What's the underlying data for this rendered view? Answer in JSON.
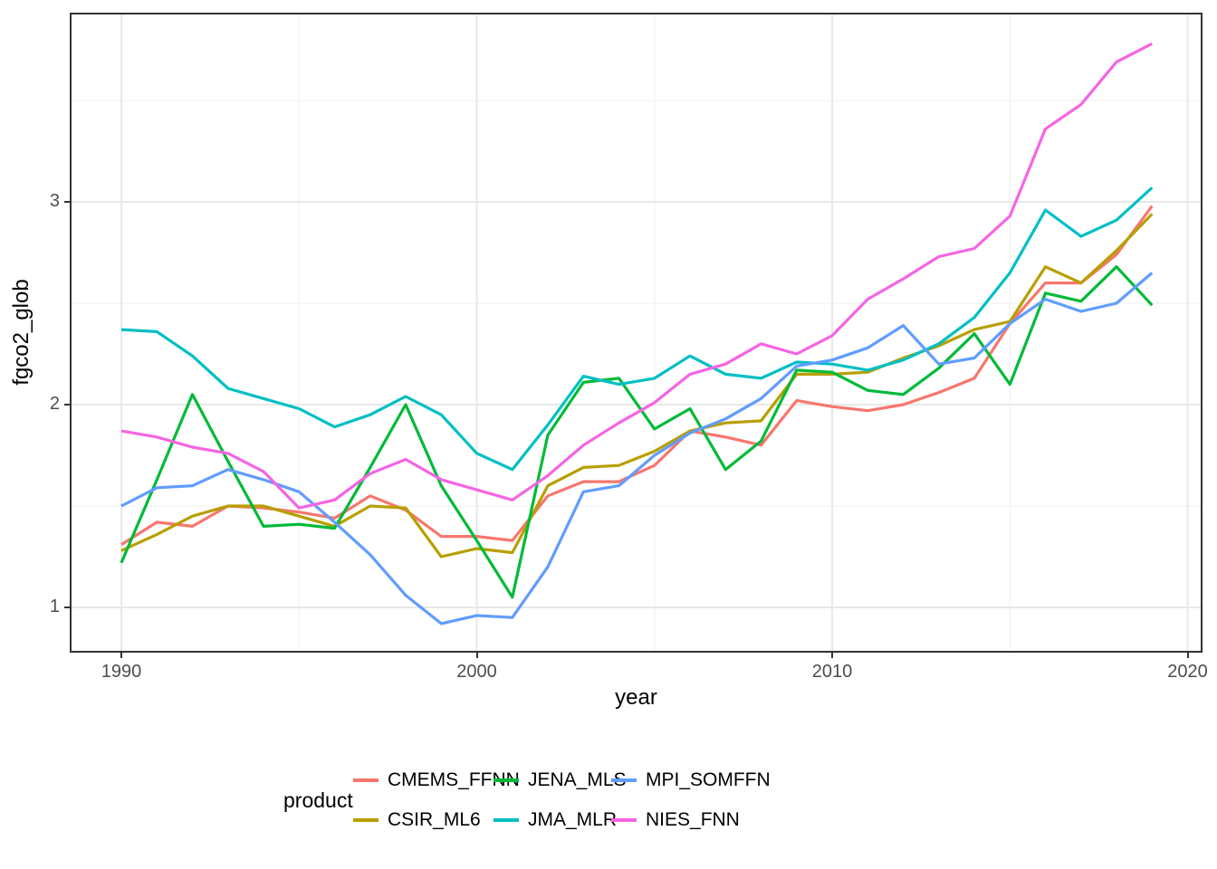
{
  "chart_data": {
    "type": "line",
    "title": "",
    "xlabel": "year",
    "ylabel": "fgco2_glob",
    "legend_title": "product",
    "legend_position": "bottom",
    "grid": true,
    "xlim": [
      1988.5,
      2020.4
    ],
    "ylim": [
      0.78,
      3.93
    ],
    "x_ticks": [
      1990,
      2000,
      2010,
      2020
    ],
    "x_tick_labels": [
      "1990",
      "2000",
      "2010",
      "2020"
    ],
    "x_minor_ticks": [
      1995,
      2005,
      2015
    ],
    "y_ticks": [
      1,
      2,
      3
    ],
    "y_tick_labels": [
      "1",
      "2",
      "3"
    ],
    "y_minor_ticks": [
      1.5,
      2.5,
      3.5
    ],
    "x": [
      1990,
      1991,
      1992,
      1993,
      1994,
      1995,
      1996,
      1997,
      1998,
      1999,
      2000,
      2001,
      2002,
      2003,
      2004,
      2005,
      2006,
      2007,
      2008,
      2009,
      2010,
      2011,
      2012,
      2013,
      2014,
      2015,
      2016,
      2017,
      2018,
      2019
    ],
    "series": [
      {
        "name": "CMEMS_FFNN",
        "color": "#F8766D",
        "values": [
          1.31,
          1.42,
          1.4,
          1.5,
          1.49,
          1.47,
          1.44,
          1.55,
          1.48,
          1.35,
          1.35,
          1.33,
          1.55,
          1.62,
          1.62,
          1.7,
          1.87,
          1.84,
          1.8,
          2.02,
          1.99,
          1.97,
          2.0,
          2.06,
          2.13,
          2.4,
          2.6,
          2.6,
          2.74,
          2.98
        ]
      },
      {
        "name": "CSIR_ML6",
        "color": "#B79F00",
        "values": [
          1.28,
          1.36,
          1.45,
          1.5,
          1.5,
          1.45,
          1.4,
          1.5,
          1.49,
          1.25,
          1.29,
          1.27,
          1.6,
          1.69,
          1.7,
          1.77,
          1.87,
          1.91,
          1.92,
          2.15,
          2.15,
          2.16,
          2.23,
          2.29,
          2.37,
          2.41,
          2.68,
          2.6,
          2.76,
          2.94
        ]
      },
      {
        "name": "JENA_MLS",
        "color": "#00BA38",
        "values": [
          1.22,
          1.63,
          2.05,
          1.72,
          1.4,
          1.41,
          1.39,
          1.69,
          2.0,
          1.6,
          1.33,
          1.05,
          1.85,
          2.11,
          2.13,
          1.88,
          1.98,
          1.68,
          1.82,
          2.17,
          2.16,
          2.07,
          2.05,
          2.18,
          2.35,
          2.1,
          2.55,
          2.51,
          2.68,
          2.49
        ]
      },
      {
        "name": "JMA_MLR",
        "color": "#00BFC4",
        "values": [
          2.37,
          2.36,
          2.24,
          2.08,
          2.03,
          1.98,
          1.89,
          1.95,
          2.04,
          1.95,
          1.76,
          1.68,
          1.9,
          2.14,
          2.1,
          2.13,
          2.24,
          2.15,
          2.13,
          2.21,
          2.2,
          2.17,
          2.22,
          2.3,
          2.43,
          2.65,
          2.96,
          2.83,
          2.91,
          3.07
        ]
      },
      {
        "name": "MPI_SOMFFN",
        "color": "#619CFF",
        "values": [
          1.5,
          1.59,
          1.6,
          1.68,
          1.63,
          1.57,
          1.42,
          1.26,
          1.06,
          0.92,
          0.96,
          0.95,
          1.2,
          1.57,
          1.6,
          1.75,
          1.86,
          1.93,
          2.03,
          2.19,
          2.22,
          2.28,
          2.39,
          2.2,
          2.23,
          2.4,
          2.52,
          2.46,
          2.5,
          2.65
        ]
      },
      {
        "name": "NIES_FNN",
        "color": "#F564E3",
        "values": [
          1.87,
          1.84,
          1.79,
          1.76,
          1.67,
          1.49,
          1.53,
          1.66,
          1.73,
          1.63,
          1.58,
          1.53,
          1.65,
          1.8,
          1.91,
          2.01,
          2.15,
          2.2,
          2.3,
          2.25,
          2.34,
          2.52,
          2.62,
          2.73,
          2.77,
          2.93,
          3.36,
          3.48,
          3.69,
          3.78
        ]
      }
    ],
    "style": {
      "major_grid_color": "#E8E8E8",
      "minor_grid_color": "#F2F2F2",
      "panel_border_color": "#333333",
      "tick_color": "#333333",
      "axis_text_color": "#4d4d4d",
      "line_width": 3.2
    }
  }
}
